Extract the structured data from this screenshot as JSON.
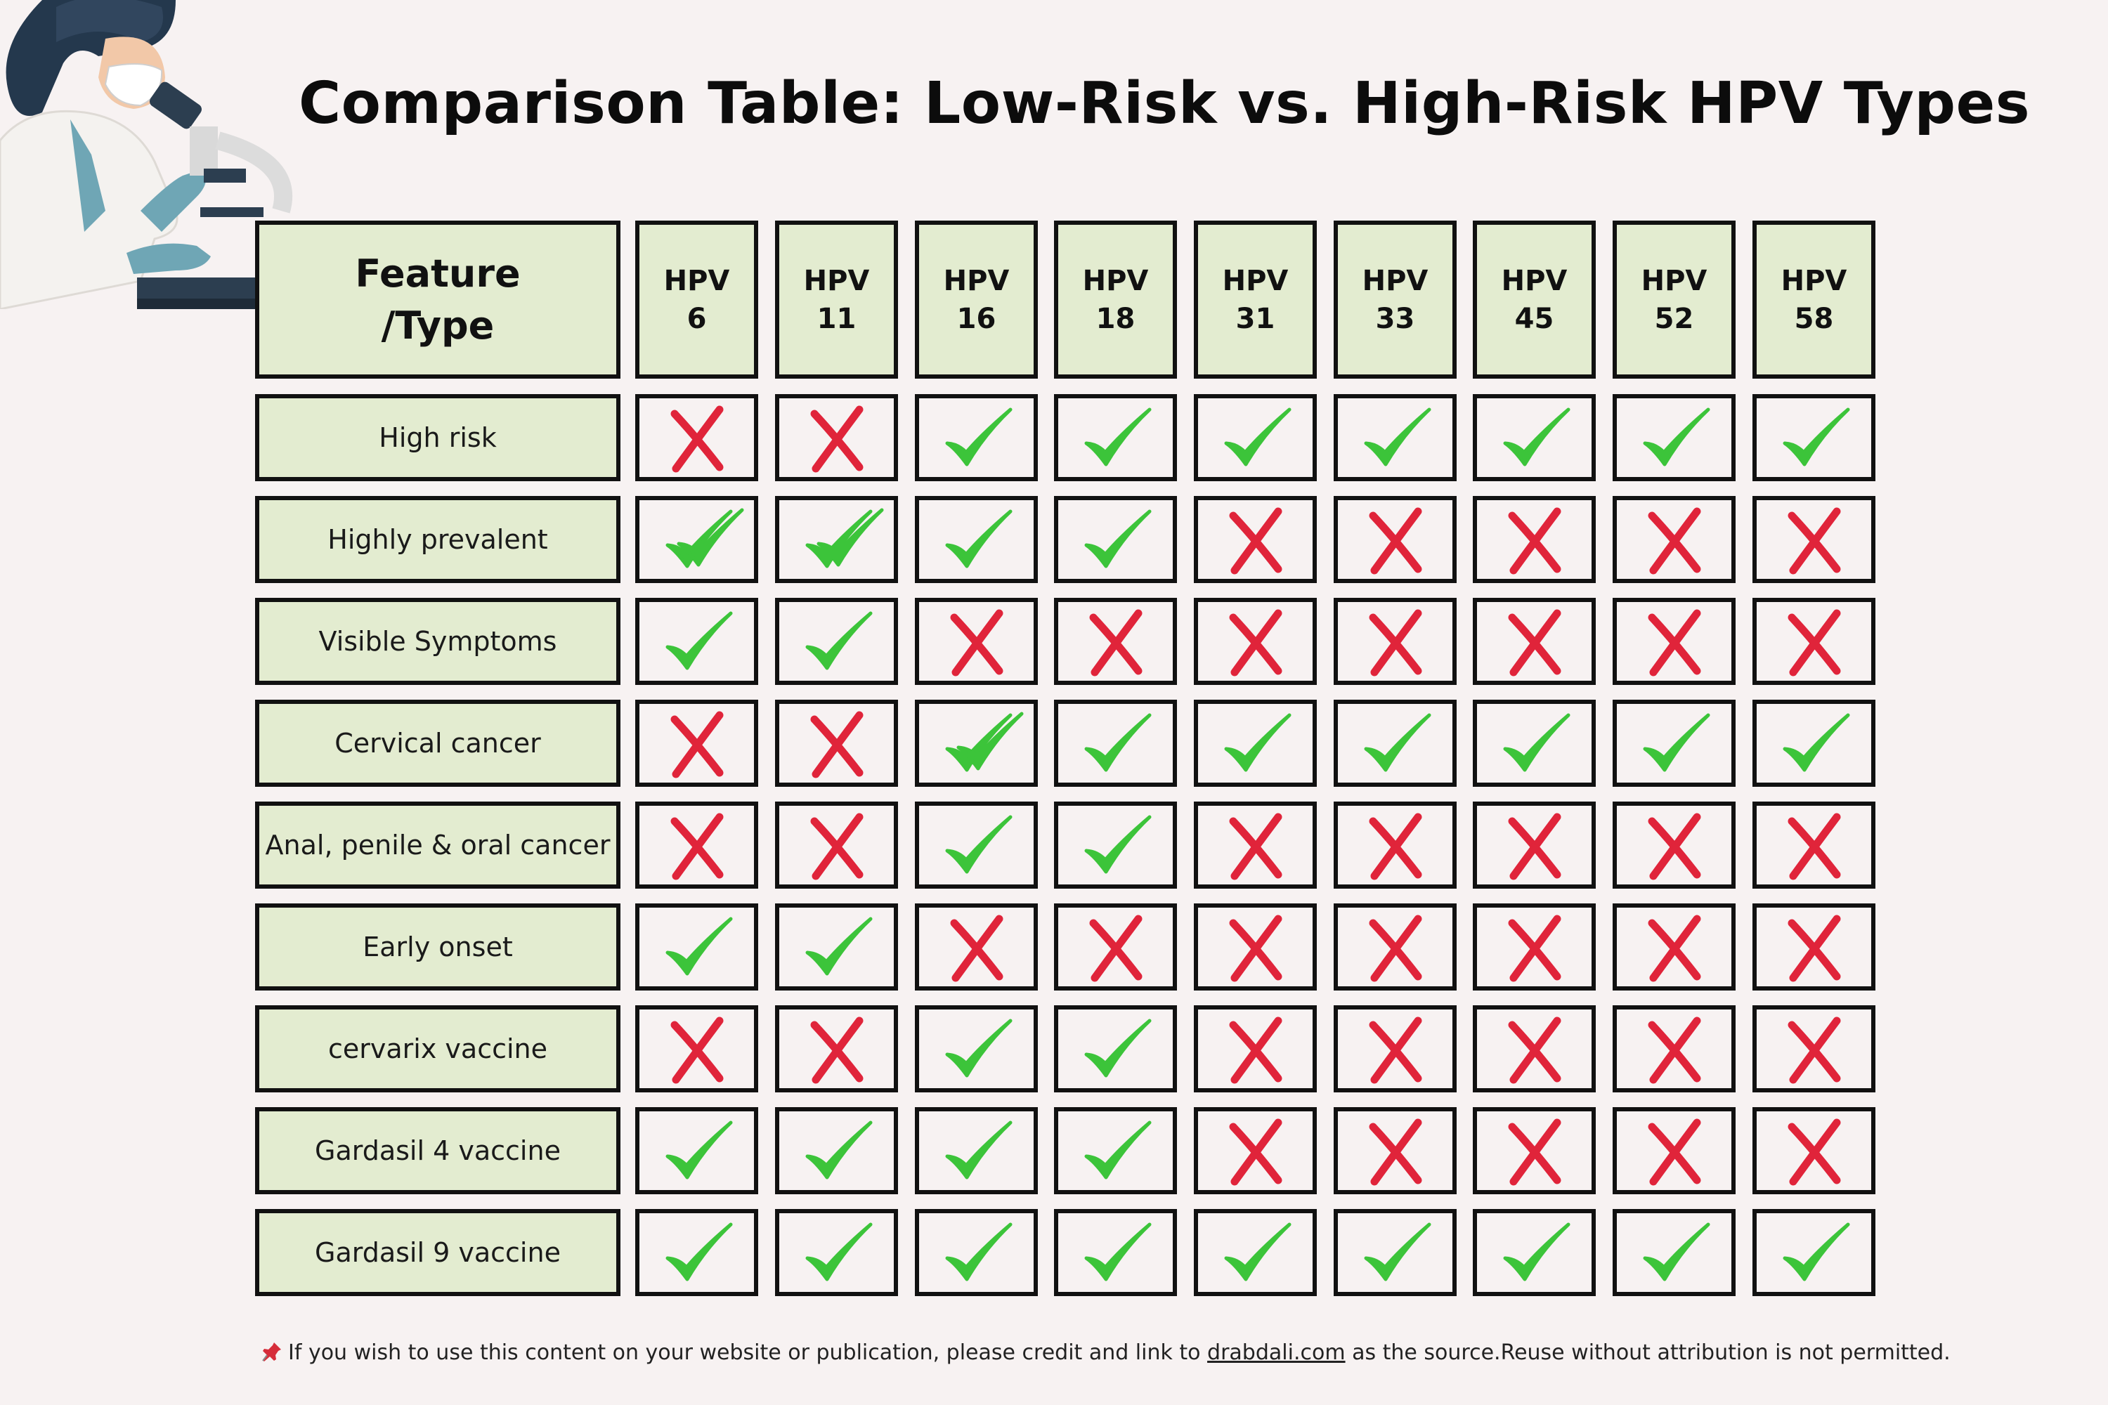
{
  "title": "Comparison Table: Low-Risk vs. High-Risk HPV Types",
  "header": {
    "feature_line1": "Feature",
    "feature_line2": "/Type",
    "types": [
      {
        "line1": "HPV",
        "line2": "6"
      },
      {
        "line1": "HPV",
        "line2": "11"
      },
      {
        "line1": "HPV",
        "line2": "16"
      },
      {
        "line1": "HPV",
        "line2": "18"
      },
      {
        "line1": "HPV",
        "line2": "31"
      },
      {
        "line1": "HPV",
        "line2": "33"
      },
      {
        "line1": "HPV",
        "line2": "45"
      },
      {
        "line1": "HPV",
        "line2": "52"
      },
      {
        "line1": "HPV",
        "line2": "58"
      }
    ]
  },
  "rows": [
    {
      "label": "High risk",
      "values": [
        "cross",
        "cross",
        "check",
        "check",
        "check",
        "check",
        "check",
        "check",
        "check"
      ]
    },
    {
      "label": "Highly prevalent",
      "values": [
        "double-check",
        "double-check",
        "check",
        "check",
        "cross",
        "cross",
        "cross",
        "cross",
        "cross"
      ]
    },
    {
      "label": "Visible Symptoms",
      "values": [
        "check",
        "check",
        "cross",
        "cross",
        "cross",
        "cross",
        "cross",
        "cross",
        "cross"
      ]
    },
    {
      "label": "Cervical cancer",
      "values": [
        "cross",
        "cross",
        "double-check",
        "check",
        "check",
        "check",
        "check",
        "check",
        "check"
      ]
    },
    {
      "label": "Anal, penile & oral cancer",
      "values": [
        "cross",
        "cross",
        "check",
        "check",
        "cross",
        "cross",
        "cross",
        "cross",
        "cross"
      ]
    },
    {
      "label": "Early onset",
      "values": [
        "check",
        "check",
        "cross",
        "cross",
        "cross",
        "cross",
        "cross",
        "cross",
        "cross"
      ]
    },
    {
      "label": "cervarix vaccine",
      "values": [
        "cross",
        "cross",
        "check",
        "check",
        "cross",
        "cross",
        "cross",
        "cross",
        "cross"
      ]
    },
    {
      "label": "Gardasil 4 vaccine",
      "values": [
        "check",
        "check",
        "check",
        "check",
        "cross",
        "cross",
        "cross",
        "cross",
        "cross"
      ]
    },
    {
      "label": "Gardasil 9 vaccine",
      "values": [
        "check",
        "check",
        "check",
        "check",
        "check",
        "check",
        "check",
        "check",
        "check"
      ]
    }
  ],
  "footer": {
    "icon": "pushpin-icon",
    "text_before": "If you wish to use this content on your website or publication, please credit and link to ",
    "link": "drabdali.com",
    "text_after": " as the source.Reuse without attribution is not permitted."
  },
  "colors": {
    "check": "#3cc43a",
    "cross": "#e0243a",
    "cell_fill": "#e3ecd0",
    "background": "#f7f2f2"
  },
  "illustration": "scientist-with-microscope-illustration"
}
